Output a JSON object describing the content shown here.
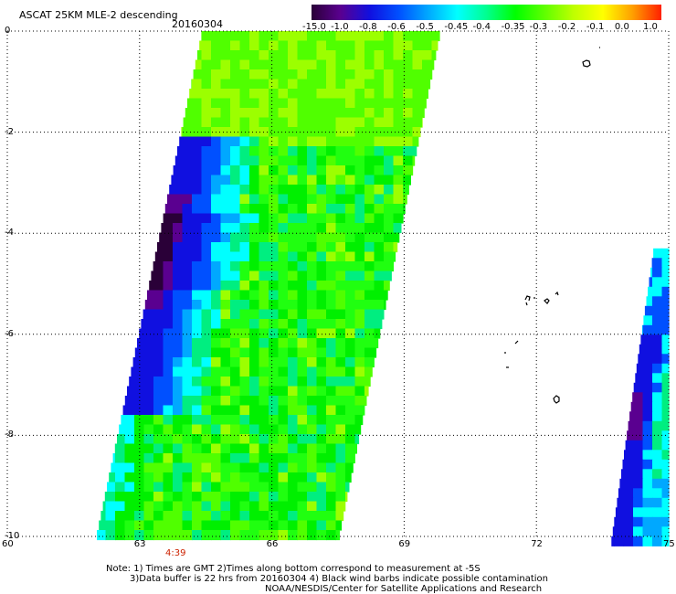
{
  "header": {
    "title": "ASCAT 25KM MLE-2 descending",
    "date": "20160304"
  },
  "colorbar": {
    "labels": [
      "-15.0",
      "-1.0",
      "-0.8",
      "-0.6",
      "-0.5",
      "-0.45",
      "-0.4",
      "-0.35",
      "-0.3",
      "-0.2",
      "-0.1",
      "0.0",
      "1.0"
    ],
    "colors": [
      "#2a0038",
      "#5a0090",
      "#1010e0",
      "#0050ff",
      "#00a8ff",
      "#00ffff",
      "#00ff90",
      "#00ff00",
      "#60ff00",
      "#c0ff00",
      "#ffff00",
      "#ffa000",
      "#ff2000"
    ]
  },
  "map": {
    "lat_labels": [
      "0",
      "-2",
      "-4",
      "-6",
      "-8",
      "-10"
    ],
    "lon_labels": [
      "60",
      "63",
      "66",
      "69",
      "72",
      "75"
    ],
    "lat_range": [
      -10,
      0
    ],
    "lon_range": [
      60,
      75
    ],
    "pass_time": "4:39",
    "pass_time_color": "#cc2200",
    "grid": "dotted",
    "swath_west": {
      "west_edge_lon_at_lat0": 64.4,
      "west_edge_lon_at_lat10": 62.0,
      "east_edge_lon_at_lat0": 69.8,
      "east_edge_lon_at_lat10": 67.5
    },
    "swath_east": {
      "west_edge_lon_at_lat4": 74.7,
      "west_edge_lon_at_lat10": 73.7
    }
  },
  "footer": {
    "line1": "Note: 1) Times are GMT 2)Times along bottom correspond to measurement at -5S",
    "line2": "3)Data buffer is 22 hrs from 20160304 4) Black wind barbs indicate possible contamination",
    "line3": "NOAA/NESDIS/Center for Satellite Applications and Research"
  }
}
